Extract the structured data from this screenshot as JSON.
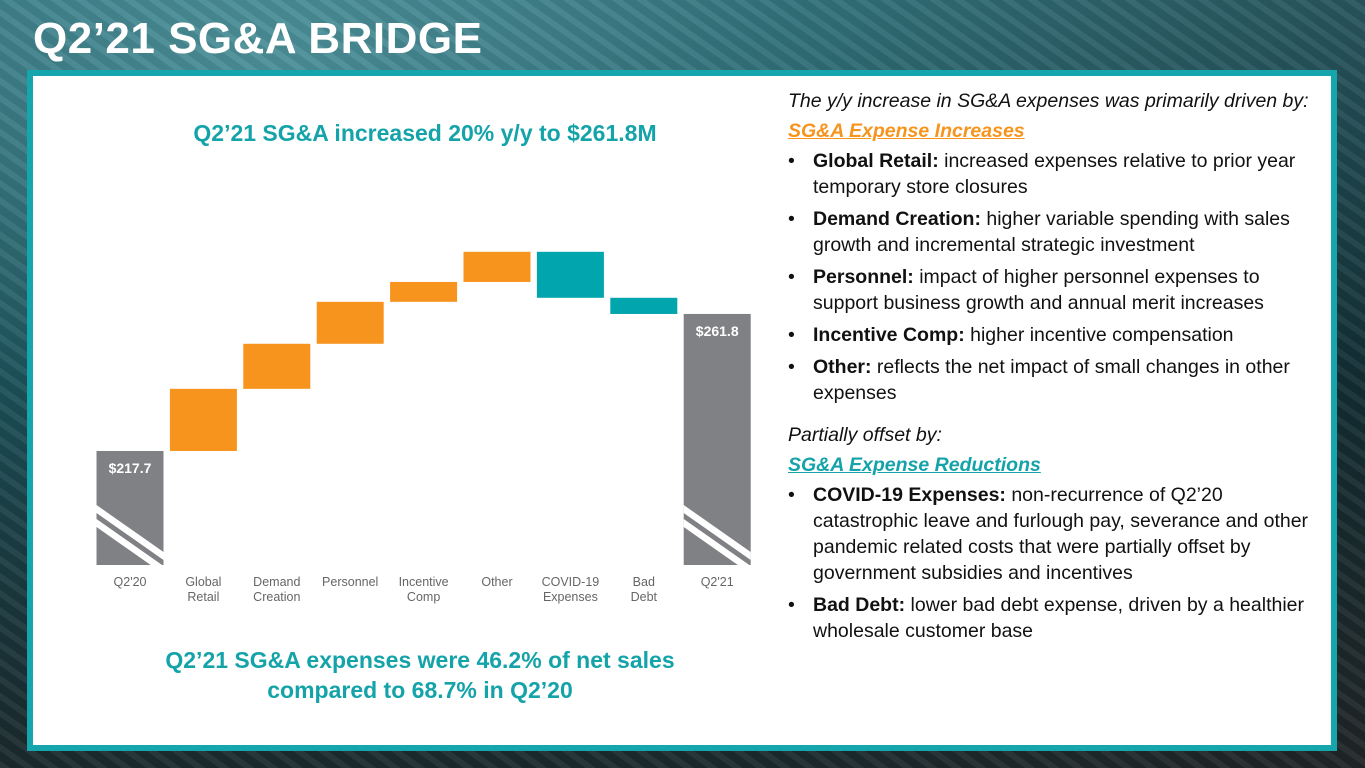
{
  "title": "Q2’21 SG&A BRIDGE",
  "headline_top": "Q2’21 SG&A increased 20% y/y to $261.8M",
  "headline_bottom_line1": "Q2’21 SG&A expenses were 46.2% of net sales",
  "headline_bottom_line2": "compared to 68.7% in Q2’20",
  "colors": {
    "increase": "#f7941d",
    "decrease": "#00a5ad",
    "total": "#808184",
    "accent": "#14a6ac"
  },
  "chart_data": {
    "type": "waterfall",
    "unit": "$M",
    "axis_broken": true,
    "categories": [
      "Q2'20",
      "Global Retail",
      "Demand Creation",
      "Personnel",
      "Incentive Comp",
      "Other",
      "COVID-19 Expenses",
      "Bad Debt",
      "Q2'21"
    ],
    "category_lines": [
      [
        "Q2'20"
      ],
      [
        "Global",
        "Retail"
      ],
      [
        "Demand",
        "Creation"
      ],
      [
        "Personnel"
      ],
      [
        "Incentive",
        "Comp"
      ],
      [
        "Other"
      ],
      [
        "COVID-19",
        "Expenses"
      ],
      [
        "Bad",
        "Debt"
      ],
      [
        "Q2'21"
      ]
    ],
    "kinds": [
      "total",
      "increase",
      "increase",
      "increase",
      "increase",
      "increase",
      "decrease",
      "decrease",
      "total"
    ],
    "values": [
      217.7,
      20.0,
      14.5,
      13.5,
      6.4,
      9.7,
      -14.8,
      -5.2,
      261.8
    ],
    "data_labels": {
      "Q2'20": "$217.7",
      "Q2'21": "$261.8"
    }
  },
  "right": {
    "intro": "The y/y increase in SG&A expenses was primarily driven by:",
    "increases_heading": "SG&A Expense Increases",
    "increases": [
      {
        "term": "Global Retail:",
        "text": " increased expenses relative to prior year temporary store closures"
      },
      {
        "term": "Demand Creation:",
        "text": " higher variable spending with sales growth and incremental strategic investment"
      },
      {
        "term": "Personnel:",
        "text": " impact of higher personnel expenses to support business growth and annual merit increases"
      },
      {
        "term": "Incentive Comp:",
        "text": " higher incentive compensation"
      },
      {
        "term": "Other:",
        "text": " reflects the net impact of small changes in other expenses"
      }
    ],
    "offset_intro": "Partially offset by:",
    "reductions_heading": "SG&A Expense Reductions",
    "reductions": [
      {
        "term": "COVID-19 Expenses:",
        "text": " non-recurrence of Q2’20 catastrophic leave and furlough pay, severance and other pandemic related costs that were partially offset by government subsidies and incentives"
      },
      {
        "term": "Bad Debt:",
        "text": " lower bad debt expense, driven by a healthier wholesale customer base"
      }
    ]
  }
}
